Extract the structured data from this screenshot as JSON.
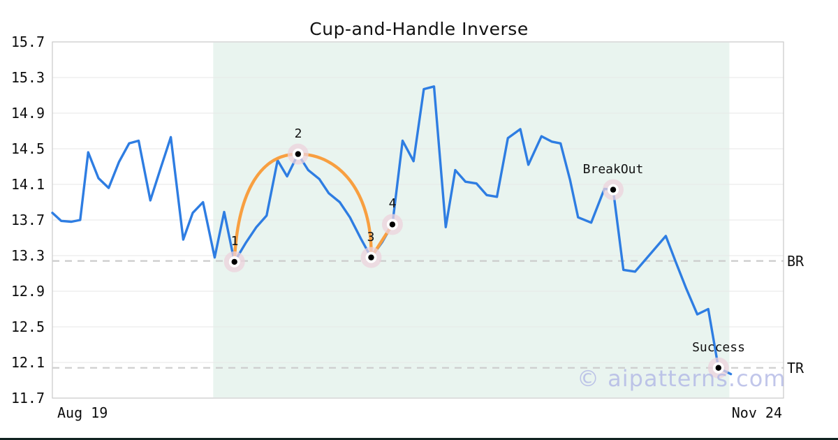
{
  "watermark": {
    "text": "© aipatterns.com"
  },
  "chart_data": {
    "type": "line",
    "title": "Cup-and-Handle Inverse",
    "x_axis": {
      "start_label": "Aug 19",
      "end_label": "Nov 24"
    },
    "y_axis": {
      "min": 11.7,
      "max": 15.7,
      "tick_step": 0.4,
      "ticks": [
        15.7,
        15.3,
        14.9,
        14.5,
        14.1,
        13.7,
        13.3,
        12.9,
        12.5,
        12.1,
        11.7
      ],
      "gridlines": [
        15.3,
        14.9,
        14.5,
        14.1,
        13.7,
        13.3,
        12.9,
        12.5,
        12.1
      ]
    },
    "grid": true,
    "legend": "none",
    "series": [
      {
        "name": "price",
        "color": "#2e7de2",
        "points": [
          [
            0.0,
            13.78
          ],
          [
            0.012,
            13.69
          ],
          [
            0.026,
            13.68
          ],
          [
            0.038,
            13.7
          ],
          [
            0.049,
            14.46
          ],
          [
            0.063,
            14.17
          ],
          [
            0.077,
            14.06
          ],
          [
            0.091,
            14.35
          ],
          [
            0.105,
            14.56
          ],
          [
            0.118,
            14.59
          ],
          [
            0.134,
            13.92
          ],
          [
            0.148,
            14.28
          ],
          [
            0.162,
            14.63
          ],
          [
            0.179,
            13.48
          ],
          [
            0.192,
            13.78
          ],
          [
            0.206,
            13.9
          ],
          [
            0.222,
            13.28
          ],
          [
            0.235,
            13.79
          ],
          [
            0.249,
            13.23
          ],
          [
            0.265,
            13.45
          ],
          [
            0.279,
            13.62
          ],
          [
            0.293,
            13.75
          ],
          [
            0.308,
            14.37
          ],
          [
            0.321,
            14.19
          ],
          [
            0.336,
            14.44
          ],
          [
            0.35,
            14.26
          ],
          [
            0.365,
            14.16
          ],
          [
            0.378,
            14.0
          ],
          [
            0.393,
            13.9
          ],
          [
            0.407,
            13.73
          ],
          [
            0.422,
            13.49
          ],
          [
            0.436,
            13.28
          ],
          [
            0.451,
            13.45
          ],
          [
            0.465,
            13.65
          ],
          [
            0.479,
            14.59
          ],
          [
            0.494,
            14.36
          ],
          [
            0.508,
            15.17
          ],
          [
            0.522,
            15.2
          ],
          [
            0.538,
            13.62
          ],
          [
            0.551,
            14.26
          ],
          [
            0.565,
            14.13
          ],
          [
            0.58,
            14.11
          ],
          [
            0.594,
            13.98
          ],
          [
            0.608,
            13.96
          ],
          [
            0.623,
            14.62
          ],
          [
            0.64,
            14.72
          ],
          [
            0.651,
            14.32
          ],
          [
            0.669,
            14.64
          ],
          [
            0.683,
            14.58
          ],
          [
            0.695,
            14.56
          ],
          [
            0.708,
            14.15
          ],
          [
            0.719,
            13.73
          ],
          [
            0.737,
            13.67
          ],
          [
            0.755,
            14.05
          ],
          [
            0.767,
            14.04
          ],
          [
            0.781,
            13.14
          ],
          [
            0.797,
            13.12
          ],
          [
            0.839,
            13.52
          ],
          [
            0.853,
            13.22
          ],
          [
            0.867,
            12.93
          ],
          [
            0.882,
            12.64
          ],
          [
            0.897,
            12.7
          ],
          [
            0.911,
            12.04
          ],
          [
            0.928,
            11.97
          ]
        ]
      }
    ],
    "pattern_overlay": {
      "name": "cup-and-handle-arc",
      "color": "#f89f40",
      "through_markers": [
        "1",
        "2",
        "3",
        "4"
      ]
    },
    "markers": [
      {
        "label": "1",
        "x": 0.249,
        "value": 13.23
      },
      {
        "label": "2",
        "x": 0.336,
        "value": 14.44
      },
      {
        "label": "3",
        "x": 0.436,
        "value": 13.28
      },
      {
        "label": "4",
        "x": 0.465,
        "value": 13.65
      },
      {
        "label": "BreakOut",
        "x": 0.767,
        "value": 14.04
      },
      {
        "label": "Success",
        "x": 0.911,
        "value": 12.04
      }
    ],
    "hlines": [
      {
        "label": "BR",
        "value": 13.24
      },
      {
        "label": "TR",
        "value": 12.04
      }
    ],
    "shaded_region": {
      "x_start": 0.22,
      "x_end": 0.926,
      "color": "#e9f4ef"
    },
    "colors": {
      "price_line": "#2e7de2",
      "pattern_line": "#f89f40",
      "marker_halo": "#ecd3dc",
      "marker_dot": "#000000",
      "dashed_line": "#cccccc",
      "gridline": "#e7e7e7",
      "plot_border": "#c9c9c9",
      "watermark": "#b2b8e6"
    }
  }
}
